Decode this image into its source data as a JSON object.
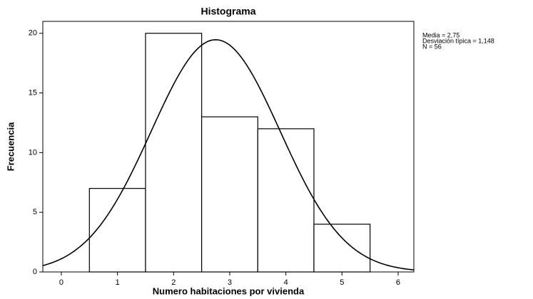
{
  "chart_data": {
    "type": "histogram",
    "title": "Histograma",
    "x_label": "Numero habitaciones por vivienda",
    "y_label": "Frecuencia",
    "bins": [
      0.5,
      1.5,
      2.5,
      3.5,
      4.5,
      5.5
    ],
    "counts": [
      7,
      20,
      13,
      12,
      4
    ],
    "color": "#ffffff",
    "xlim": [
      -0.33,
      6.28
    ],
    "xticks": [
      0,
      1,
      2,
      3,
      4,
      5,
      6
    ],
    "ylim": [
      0,
      21
    ],
    "yticks": [
      0,
      5,
      10,
      15,
      20
    ],
    "grid": false,
    "normal_curve": {
      "mean": 2.75,
      "sd": 1.148,
      "n": 56
    },
    "annotations": [
      "Media = 2,75",
      "Desviación típica = 1,148",
      "N = 56"
    ]
  }
}
